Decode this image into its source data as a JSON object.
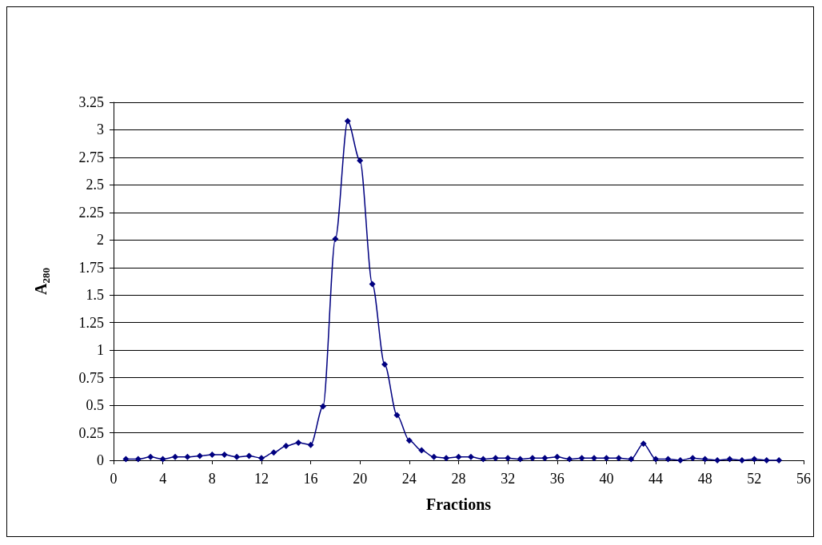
{
  "chart_data": {
    "type": "line",
    "xlabel": "Fractions",
    "ylabel": "A$_{280}$",
    "x": [
      1,
      2,
      3,
      4,
      5,
      6,
      7,
      8,
      9,
      10,
      11,
      12,
      13,
      14,
      15,
      16,
      17,
      18,
      19,
      20,
      21,
      22,
      23,
      24,
      25,
      26,
      27,
      28,
      29,
      30,
      31,
      32,
      33,
      34,
      35,
      36,
      37,
      38,
      39,
      40,
      41,
      42,
      43,
      44,
      45,
      46,
      47,
      48,
      49,
      50,
      51,
      52,
      53,
      54
    ],
    "series": [
      {
        "color": "#000080",
        "values": [
          0.01,
          0.01,
          0.03,
          0.01,
          0.03,
          0.03,
          0.04,
          0.05,
          0.05,
          0.03,
          0.04,
          0.02,
          0.07,
          0.13,
          0.16,
          0.14,
          0.49,
          2.01,
          3.08,
          2.72,
          1.6,
          0.87,
          0.41,
          0.18,
          0.09,
          0.03,
          0.02,
          0.03,
          0.03,
          0.01,
          0.02,
          0.02,
          0.01,
          0.02,
          0.02,
          0.03,
          0.01,
          0.02,
          0.02,
          0.02,
          0.02,
          0.01,
          0.15,
          0.01,
          0.01,
          0,
          0.02,
          0.01,
          0,
          0.01,
          0,
          0.01,
          0,
          0
        ]
      }
    ],
    "xlim": [
      0,
      56
    ],
    "xticks": [
      0,
      4,
      8,
      12,
      16,
      20,
      24,
      28,
      32,
      36,
      40,
      44,
      48,
      52,
      56
    ],
    "ylim": [
      0,
      3.25
    ],
    "yticks": [
      0,
      0.25,
      0.5,
      0.75,
      1,
      1.25,
      1.5,
      1.75,
      2,
      2.25,
      2.5,
      2.75,
      3,
      3.25
    ],
    "grid": "y",
    "marker": "diamond",
    "line_style": "solid"
  }
}
